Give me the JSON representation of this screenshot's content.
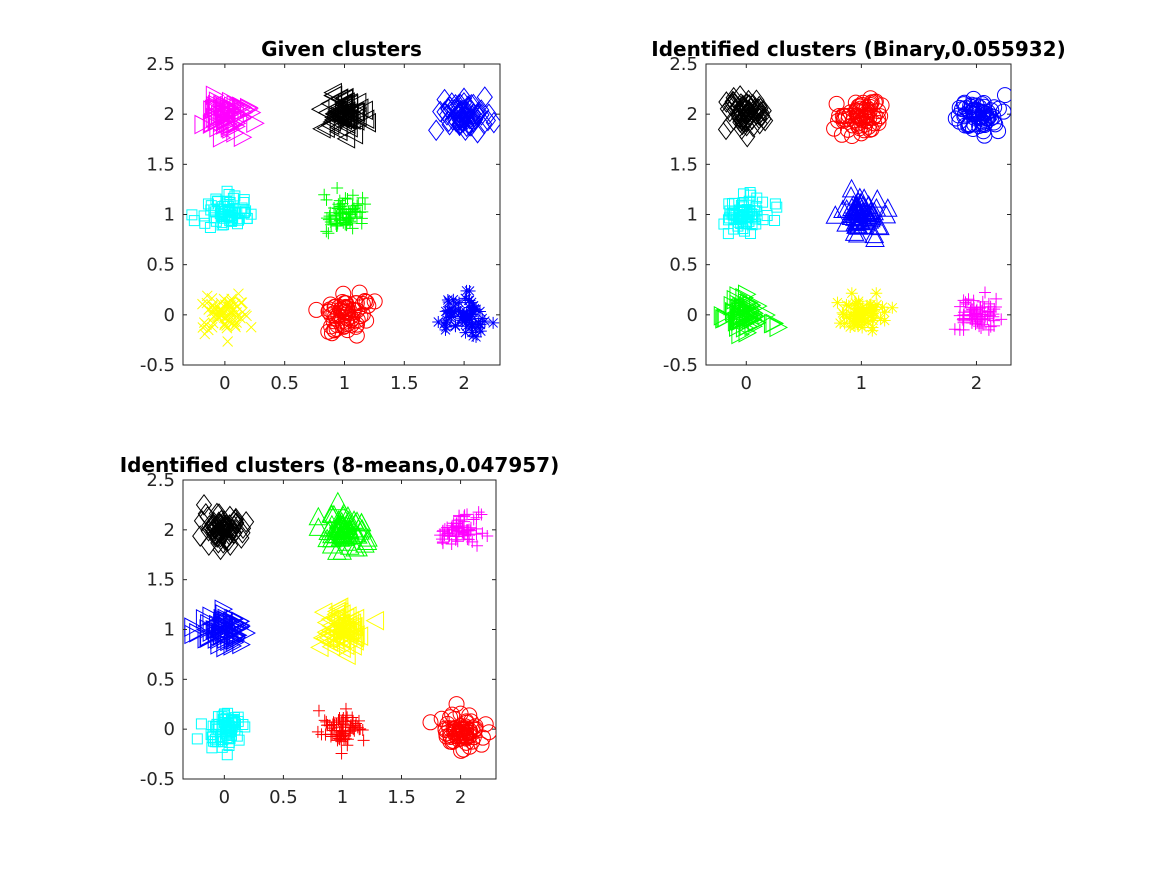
{
  "chart_data": [
    {
      "type": "scatter",
      "title": "Given clusters",
      "xlabel": "",
      "ylabel": "",
      "xlim": [
        -0.35,
        2.3
      ],
      "ylim": [
        -0.5,
        2.5
      ],
      "xticks": [
        0,
        0.5,
        1,
        1.5,
        2
      ],
      "xtick_labels": [
        "0",
        "0.5",
        "1",
        "1.5",
        "2"
      ],
      "yticks": [
        -0.5,
        0,
        0.5,
        1,
        1.5,
        2,
        2.5
      ],
      "ytick_labels": [
        "-0.5",
        "0",
        "0.5",
        "1",
        "1.5",
        "2",
        "2.5"
      ],
      "grid": false,
      "series": [
        {
          "center": [
            0,
            2
          ],
          "marker": "triangle-right",
          "color": "#ff00ff"
        },
        {
          "center": [
            1,
            2
          ],
          "marker": "triangle-left",
          "color": "#000000"
        },
        {
          "center": [
            2,
            2
          ],
          "marker": "diamond",
          "color": "#0000ff"
        },
        {
          "center": [
            0,
            1
          ],
          "marker": "square",
          "color": "#00ffff"
        },
        {
          "center": [
            1,
            1
          ],
          "marker": "plus",
          "color": "#00ff00"
        },
        {
          "center": [
            0,
            0
          ],
          "marker": "x",
          "color": "#ffff00"
        },
        {
          "center": [
            1,
            0
          ],
          "marker": "circle",
          "color": "#ff0000"
        },
        {
          "center": [
            2,
            0
          ],
          "marker": "asterisk",
          "color": "#0000ff"
        }
      ]
    },
    {
      "type": "scatter",
      "title": "Identified clusters (Binary,0.055932)",
      "xlabel": "",
      "ylabel": "",
      "xlim": [
        -0.35,
        2.3
      ],
      "ylim": [
        -0.5,
        2.5
      ],
      "xticks": [
        0,
        1,
        2
      ],
      "xtick_labels": [
        "0",
        "1",
        "2"
      ],
      "yticks": [
        -0.5,
        0,
        0.5,
        1,
        1.5,
        2,
        2.5
      ],
      "ytick_labels": [
        "-0.5",
        "0",
        "0.5",
        "1",
        "1.5",
        "2",
        "2.5"
      ],
      "grid": false,
      "series": [
        {
          "center": [
            0,
            2
          ],
          "marker": "diamond",
          "color": "#000000"
        },
        {
          "center": [
            1,
            2
          ],
          "marker": "circle",
          "color": "#ff0000"
        },
        {
          "center": [
            2,
            2
          ],
          "marker": "circle",
          "color": "#0000ff"
        },
        {
          "center": [
            0,
            1
          ],
          "marker": "square",
          "color": "#00ffff"
        },
        {
          "center": [
            1,
            1
          ],
          "marker": "triangle-up",
          "color": "#0000ff"
        },
        {
          "center": [
            0,
            0
          ],
          "marker": "triangle-right",
          "color": "#00ff00"
        },
        {
          "center": [
            1,
            0
          ],
          "marker": "asterisk",
          "color": "#ffff00"
        },
        {
          "center": [
            2,
            0
          ],
          "marker": "plus",
          "color": "#ff00ff"
        }
      ]
    },
    {
      "type": "scatter",
      "title": "Identified clusters (8-means,0.047957)",
      "xlabel": "",
      "ylabel": "",
      "xlim": [
        -0.35,
        2.3
      ],
      "ylim": [
        -0.5,
        2.5
      ],
      "xticks": [
        0,
        0.5,
        1,
        1.5,
        2
      ],
      "xtick_labels": [
        "0",
        "0.5",
        "1",
        "1.5",
        "2"
      ],
      "yticks": [
        -0.5,
        0,
        0.5,
        1,
        1.5,
        2,
        2.5
      ],
      "ytick_labels": [
        "-0.5",
        "0",
        "0.5",
        "1",
        "1.5",
        "2",
        "2.5"
      ],
      "grid": false,
      "series": [
        {
          "center": [
            0,
            2
          ],
          "marker": "diamond",
          "color": "#000000"
        },
        {
          "center": [
            1,
            2
          ],
          "marker": "triangle-up",
          "color": "#00ff00"
        },
        {
          "center": [
            2,
            2
          ],
          "marker": "plus",
          "color": "#ff00ff"
        },
        {
          "center": [
            0,
            1
          ],
          "marker": "triangle-right",
          "color": "#0000ff"
        },
        {
          "center": [
            1,
            1
          ],
          "marker": "triangle-left",
          "color": "#ffff00"
        },
        {
          "center": [
            0,
            0
          ],
          "marker": "square",
          "color": "#00ffff"
        },
        {
          "center": [
            1,
            0
          ],
          "marker": "plus",
          "color": "#ff0000"
        },
        {
          "center": [
            2,
            0
          ],
          "marker": "circle",
          "color": "#ff0000"
        }
      ]
    }
  ]
}
